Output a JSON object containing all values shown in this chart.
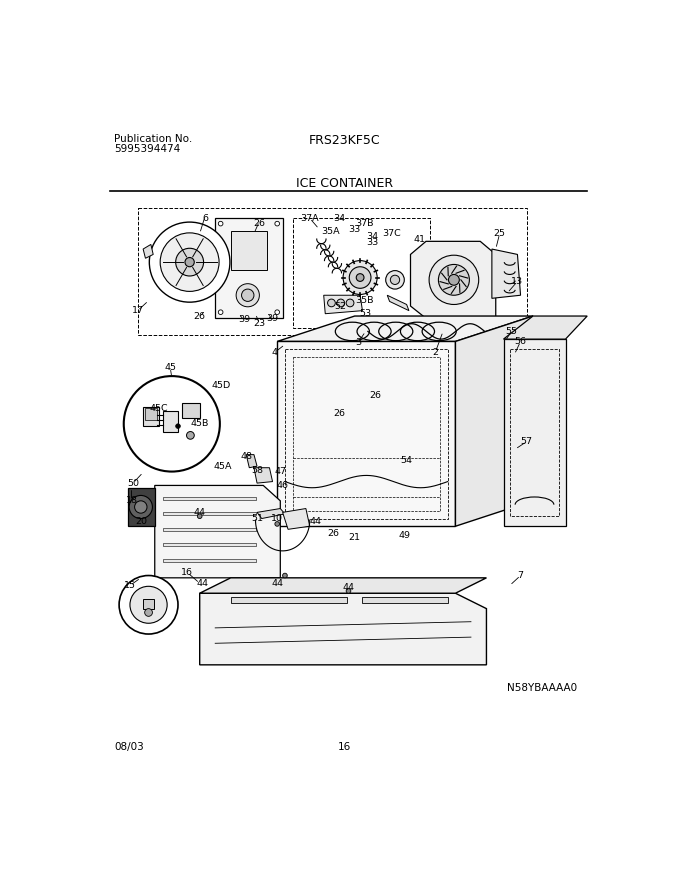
{
  "pub_no_label": "Publication No.",
  "pub_no_value": "5995394474",
  "model": "FRS23KF5C",
  "section": "ICE CONTAINER",
  "diagram_code": "N58YBAAAA0",
  "date": "08/03",
  "page": "16",
  "bg_color": "#ffffff",
  "line_color": "#000000",
  "fig_width": 6.8,
  "fig_height": 8.69,
  "dpi": 100,
  "labels": [
    [
      155,
      148,
      "6"
    ],
    [
      225,
      155,
      "26"
    ],
    [
      290,
      148,
      "37A"
    ],
    [
      328,
      148,
      "34"
    ],
    [
      317,
      165,
      "35A"
    ],
    [
      348,
      163,
      "33"
    ],
    [
      360,
      155,
      "37B"
    ],
    [
      371,
      172,
      "34"
    ],
    [
      371,
      180,
      "33"
    ],
    [
      395,
      168,
      "37C"
    ],
    [
      432,
      175,
      "41"
    ],
    [
      535,
      168,
      "25"
    ],
    [
      558,
      230,
      "13"
    ],
    [
      68,
      268,
      "17"
    ],
    [
      148,
      276,
      "26"
    ],
    [
      205,
      280,
      "39"
    ],
    [
      242,
      278,
      "39"
    ],
    [
      225,
      285,
      "23"
    ],
    [
      330,
      262,
      "52"
    ],
    [
      360,
      255,
      "35B"
    ],
    [
      362,
      272,
      "53"
    ],
    [
      245,
      322,
      "4"
    ],
    [
      352,
      310,
      "3"
    ],
    [
      452,
      322,
      "2"
    ],
    [
      375,
      378,
      "26"
    ],
    [
      328,
      402,
      "26"
    ],
    [
      550,
      295,
      "55"
    ],
    [
      562,
      308,
      "56"
    ],
    [
      110,
      342,
      "45"
    ],
    [
      175,
      365,
      "45D"
    ],
    [
      95,
      395,
      "45C"
    ],
    [
      148,
      415,
      "45B"
    ],
    [
      62,
      492,
      "50"
    ],
    [
      178,
      470,
      "45A"
    ],
    [
      208,
      458,
      "48"
    ],
    [
      222,
      475,
      "58"
    ],
    [
      252,
      477,
      "47"
    ],
    [
      255,
      495,
      "46"
    ],
    [
      60,
      515,
      "18"
    ],
    [
      72,
      542,
      "20"
    ],
    [
      148,
      530,
      "44"
    ],
    [
      222,
      538,
      "51"
    ],
    [
      248,
      538,
      "10"
    ],
    [
      298,
      542,
      "44"
    ],
    [
      320,
      558,
      "26"
    ],
    [
      348,
      562,
      "21"
    ],
    [
      412,
      560,
      "49"
    ],
    [
      415,
      462,
      "54"
    ],
    [
      570,
      438,
      "57"
    ],
    [
      58,
      625,
      "15"
    ],
    [
      132,
      608,
      "16"
    ],
    [
      152,
      622,
      "44"
    ],
    [
      248,
      622,
      "44"
    ],
    [
      340,
      628,
      "44"
    ],
    [
      562,
      612,
      "7"
    ]
  ]
}
